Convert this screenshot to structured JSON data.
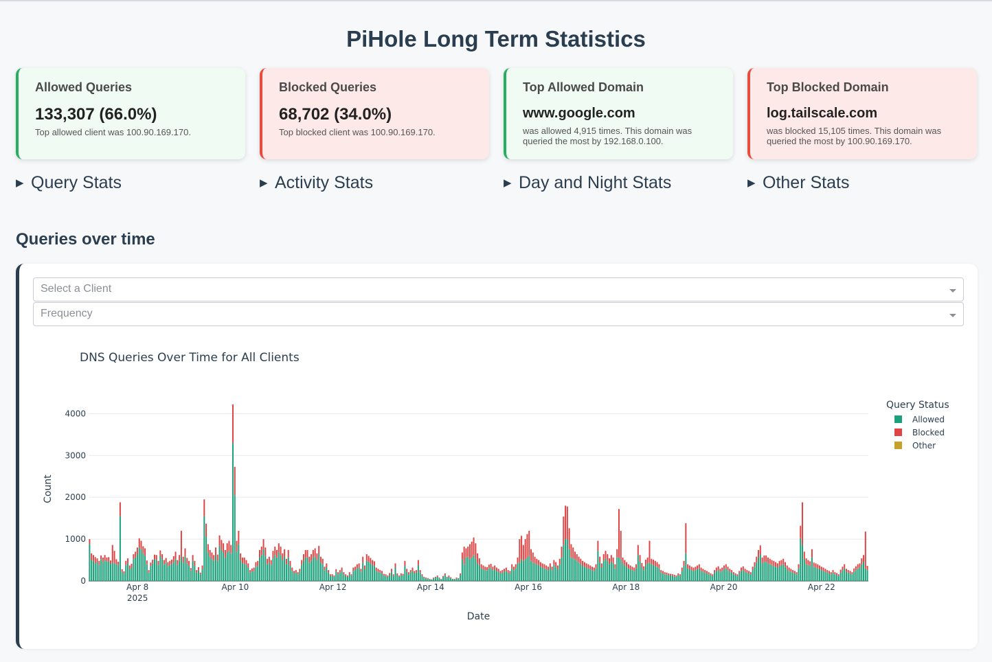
{
  "page_title": "PiHole Long Term Statistics",
  "cards": [
    {
      "label": "Allowed Queries",
      "value": "133,307 (66.0%)",
      "sub": "Top allowed client was 100.90.169.170.",
      "color": "#27ae60"
    },
    {
      "label": "Blocked Queries",
      "value": "68,702 (34.0%)",
      "sub": "Top blocked client was 100.90.169.170.",
      "color": "#e74c3c"
    },
    {
      "label": "Top Allowed Domain",
      "value": "www.google.com",
      "sub": "was allowed 4,915 times. This domain was queried the most by 192.168.0.100.",
      "color": "#27ae60"
    },
    {
      "label": "Top Blocked Domain",
      "value": "log.tailscale.com",
      "sub": "was blocked 15,105 times. This domain was queried the most by 100.90.169.170.",
      "color": "#e74c3c"
    }
  ],
  "sections": [
    {
      "arrow": "▶",
      "label": "Query Stats"
    },
    {
      "arrow": "▶",
      "label": "Activity Stats"
    },
    {
      "arrow": "▶",
      "label": "Day and Night Stats"
    },
    {
      "arrow": "▶",
      "label": "Other Stats"
    }
  ],
  "queries_heading": "Queries over time",
  "client_dropdown": {
    "placeholder": "Select a Client"
  },
  "frequency_dropdown": {
    "placeholder": "Frequency"
  },
  "chart_data": {
    "type": "bar",
    "stacked": true,
    "title": "DNS Queries Over Time for All Clients",
    "xlabel": "Date",
    "ylabel": "Count",
    "x_start": "2025-04-07 00:00",
    "x_end": "2025-04-22 23:00",
    "frequency": "hourly",
    "x_ticks": [
      {
        "date": "2025-04-08",
        "label": "Apr 8",
        "sublabel": "2025"
      },
      {
        "date": "2025-04-10",
        "label": "Apr 10",
        "sublabel": ""
      },
      {
        "date": "2025-04-12",
        "label": "Apr 12",
        "sublabel": ""
      },
      {
        "date": "2025-04-14",
        "label": "Apr 14",
        "sublabel": ""
      },
      {
        "date": "2025-04-16",
        "label": "Apr 16",
        "sublabel": ""
      },
      {
        "date": "2025-04-18",
        "label": "Apr 18",
        "sublabel": ""
      },
      {
        "date": "2025-04-20",
        "label": "Apr 20",
        "sublabel": ""
      },
      {
        "date": "2025-04-22",
        "label": "Apr 22",
        "sublabel": ""
      }
    ],
    "y_ticks": [
      0,
      1000,
      2000,
      3000,
      4000
    ],
    "ylim": [
      0,
      4400
    ],
    "grid": true,
    "legend_title": "Query Status",
    "legend_position": "right",
    "series": [
      {
        "name": "Allowed",
        "color": "#1aa07a",
        "values": [
          880,
          500,
          480,
          420,
          460,
          380,
          520,
          450,
          500,
          470,
          470,
          410,
          440,
          420,
          400,
          380,
          1550,
          220,
          180,
          380,
          420,
          280,
          320,
          520,
          560,
          640,
          800,
          760,
          660,
          600,
          400,
          200,
          360,
          420,
          520,
          500,
          380,
          600,
          520,
          400,
          440,
          360,
          380,
          400,
          450,
          520,
          380,
          480,
          580,
          440,
          580,
          420,
          360,
          250,
          480,
          360,
          200,
          250,
          160,
          280,
          1550,
          1050,
          680,
          580,
          520,
          480,
          600,
          480,
          840,
          740,
          680,
          560,
          680,
          720,
          660,
          3300,
          2050,
          700,
          880,
          500,
          420,
          420,
          380,
          320,
          200,
          230,
          240,
          340,
          360,
          560,
          620,
          760,
          600,
          400,
          440,
          380,
          540,
          620,
          560,
          680,
          620,
          500,
          580,
          400,
          560,
          360,
          240,
          180,
          200,
          160,
          220,
          380,
          480,
          560,
          560,
          440,
          480,
          560,
          580,
          500,
          640,
          440,
          400,
          260,
          320,
          200,
          120,
          120,
          100,
          220,
          160,
          200,
          240,
          160,
          120,
          100,
          160,
          120,
          240,
          260,
          300,
          320,
          220,
          440,
          280,
          480,
          460,
          420,
          380,
          360,
          240,
          220,
          200,
          180,
          130,
          120,
          100,
          140,
          220,
          120,
          320,
          140,
          100,
          140,
          130,
          360,
          220,
          160,
          200,
          240,
          180,
          200,
          380,
          200,
          120,
          80,
          60,
          50,
          40,
          30,
          60,
          80,
          100,
          60,
          40,
          90,
          140,
          80,
          100,
          70,
          40,
          40,
          60,
          50,
          140,
          520,
          400,
          560,
          580,
          520,
          560,
          620,
          540,
          420,
          380,
          300,
          280,
          260,
          250,
          300,
          310,
          260,
          280,
          240,
          220,
          180,
          200,
          220,
          240,
          200,
          180,
          300,
          260,
          300,
          420,
          440,
          520,
          480,
          520,
          560,
          600,
          480,
          440,
          420,
          400,
          380,
          340,
          320,
          300,
          280,
          260,
          320,
          260,
          380,
          340,
          280,
          400,
          560,
          860,
          1000,
          1000,
          760,
          560,
          540,
          520,
          480,
          440,
          400,
          360,
          340,
          320,
          300,
          280,
          260,
          240,
          300,
          720,
          440,
          320,
          480,
          540,
          480,
          400,
          460,
          420,
          300,
          560,
          560,
          520,
          420,
          380,
          340,
          300,
          280,
          260,
          240,
          300,
          620,
          460,
          320,
          260,
          380,
          420,
          440,
          400,
          380,
          360,
          340,
          300,
          200,
          180,
          160,
          150,
          140,
          130,
          120,
          110,
          100,
          140,
          120,
          240,
          360,
          660,
          300,
          280,
          260,
          240,
          260,
          280,
          300,
          240,
          220,
          200,
          180,
          160,
          140,
          120,
          200,
          240,
          260,
          220,
          240,
          280,
          300,
          260,
          220,
          200,
          160,
          140,
          120,
          180,
          240,
          260,
          220,
          200,
          180,
          160,
          260,
          340,
          440,
          560,
          640,
          420,
          460,
          460,
          420,
          400,
          380,
          360,
          340,
          320,
          360,
          380,
          400,
          340,
          280,
          240,
          220,
          200,
          180,
          160,
          300,
          1020,
          860,
          520,
          400,
          380,
          360,
          560,
          340,
          320,
          300,
          280,
          260,
          240,
          220,
          200,
          180,
          160,
          200,
          160,
          140,
          120,
          200,
          260,
          300,
          220,
          200,
          180,
          160,
          220,
          260,
          300,
          320,
          400,
          460,
          300,
          260
        ]
      },
      {
        "name": "Blocked",
        "color": "#e04545",
        "values": [
          120,
          160,
          140,
          150,
          80,
          100,
          90,
          110,
          120,
          90,
          100,
          80,
          420,
          300,
          120,
          80,
          330,
          60,
          50,
          100,
          120,
          90,
          90,
          120,
          140,
          160,
          220,
          200,
          170,
          180,
          90,
          60,
          80,
          90,
          110,
          120,
          100,
          130,
          120,
          100,
          110,
          90,
          100,
          110,
          140,
          180,
          120,
          140,
          620,
          140,
          200,
          130,
          120,
          60,
          140,
          120,
          60,
          80,
          40,
          90,
          400,
          320,
          200,
          160,
          160,
          140,
          200,
          150,
          250,
          240,
          220,
          180,
          220,
          240,
          200,
          920,
          680,
          260,
          320,
          160,
          140,
          140,
          120,
          100,
          60,
          70,
          80,
          110,
          120,
          180,
          200,
          240,
          200,
          130,
          140,
          120,
          180,
          200,
          180,
          220,
          200,
          160,
          180,
          130,
          180,
          120,
          80,
          60,
          60,
          50,
          70,
          120,
          160,
          180,
          180,
          140,
          160,
          180,
          200,
          160,
          200,
          140,
          130,
          80,
          100,
          60,
          40,
          40,
          30,
          60,
          50,
          60,
          80,
          50,
          40,
          30,
          50,
          40,
          80,
          80,
          100,
          100,
          70,
          140,
          90,
          160,
          140,
          130,
          120,
          110,
          80,
          70,
          60,
          60,
          40,
          40,
          30,
          50,
          70,
          40,
          100,
          40,
          30,
          40,
          40,
          120,
          70,
          50,
          60,
          80,
          60,
          60,
          120,
          60,
          40,
          20,
          20,
          20,
          10,
          10,
          20,
          20,
          30,
          20,
          10,
          30,
          40,
          20,
          30,
          20,
          10,
          10,
          20,
          20,
          40,
          160,
          420,
          220,
          240,
          360,
          380,
          420,
          360,
          240,
          160,
          100,
          90,
          80,
          80,
          90,
          100,
          80,
          90,
          80,
          70,
          60,
          60,
          70,
          80,
          60,
          60,
          100,
          80,
          100,
          140,
          560,
          560,
          380,
          480,
          560,
          600,
          280,
          240,
          160,
          130,
          120,
          110,
          100,
          100,
          90,
          80,
          100,
          80,
          120,
          110,
          90,
          130,
          260,
          680,
          800,
          780,
          500,
          320,
          260,
          180,
          160,
          140,
          130,
          120,
          110,
          100,
          100,
          90,
          80,
          80,
          100,
          240,
          140,
          100,
          160,
          180,
          160,
          140,
          160,
          140,
          100,
          200,
          1160,
          680,
          140,
          120,
          110,
          100,
          90,
          80,
          80,
          100,
          240,
          160,
          110,
          90,
          130,
          140,
          520,
          130,
          130,
          120,
          110,
          100,
          60,
          60,
          50,
          50,
          40,
          40,
          40,
          40,
          30,
          40,
          40,
          80,
          120,
          720,
          100,
          90,
          80,
          80,
          80,
          90,
          100,
          80,
          70,
          60,
          60,
          50,
          40,
          40,
          60,
          80,
          90,
          70,
          80,
          90,
          100,
          80,
          70,
          60,
          50,
          40,
          40,
          60,
          80,
          90,
          70,
          60,
          60,
          50,
          80,
          110,
          140,
          180,
          210,
          140,
          150,
          150,
          140,
          130,
          120,
          120,
          110,
          100,
          120,
          120,
          130,
          110,
          90,
          80,
          70,
          60,
          60,
          50,
          100,
          300,
          1020,
          180,
          140,
          120,
          110,
          200,
          100,
          100,
          100,
          90,
          80,
          80,
          70,
          60,
          60,
          50,
          60,
          50,
          50,
          40,
          70,
          80,
          100,
          70,
          60,
          60,
          50,
          80,
          90,
          100,
          100,
          140,
          160,
          880,
          100,
          80
        ]
      },
      {
        "name": "Other",
        "color": "#c6a12a",
        "values": []
      }
    ]
  }
}
